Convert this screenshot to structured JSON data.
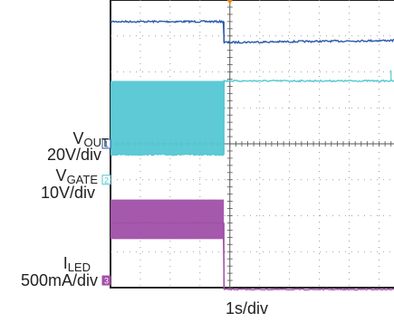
{
  "chart_data": {
    "type": "line",
    "title": "",
    "xlabel": "1s/div",
    "grid": true,
    "divisions": {
      "x": 10,
      "y": 8
    },
    "series": [
      {
        "name": "V_OUT",
        "marker": "1",
        "scale": "20V/div",
        "color": "#2a5aa8",
        "points": [
          [
            0,
            0.6
          ],
          [
            3.8,
            0.6
          ],
          [
            3.8,
            1.18
          ],
          [
            10,
            1.12
          ]
        ],
        "noise": 0.05
      },
      {
        "name": "V_GATE",
        "marker": "2",
        "scale": "10V/div",
        "color": "#55c7d3",
        "points": [
          [
            0,
            4.3
          ],
          [
            3.8,
            4.3
          ],
          [
            3.8,
            2.25
          ],
          [
            10,
            2.25
          ]
        ],
        "noise_band_before_step": [
          2.25,
          4.3
        ],
        "noise": 0.04
      },
      {
        "name": "I_LED",
        "marker": "3",
        "scale": "500mA/div",
        "color": "#a050a8",
        "points": [
          [
            0,
            6.2
          ],
          [
            3.8,
            6.2
          ],
          [
            3.8,
            8.05
          ],
          [
            10,
            8.05
          ]
        ],
        "noise_band_before_step": [
          5.55,
          6.65
        ],
        "noise": 0.03
      }
    ]
  },
  "labels": {
    "vout_main": "V",
    "vout_sub": "OUT",
    "vout_scale": "20V/div",
    "vgate_main": "V",
    "vgate_sub": "GATE",
    "vgate_scale": "10V/div",
    "iled_main": "I",
    "iled_sub": "LED",
    "iled_scale": "500mA/div",
    "marker1": "1",
    "marker2": "2",
    "marker3": "3"
  }
}
